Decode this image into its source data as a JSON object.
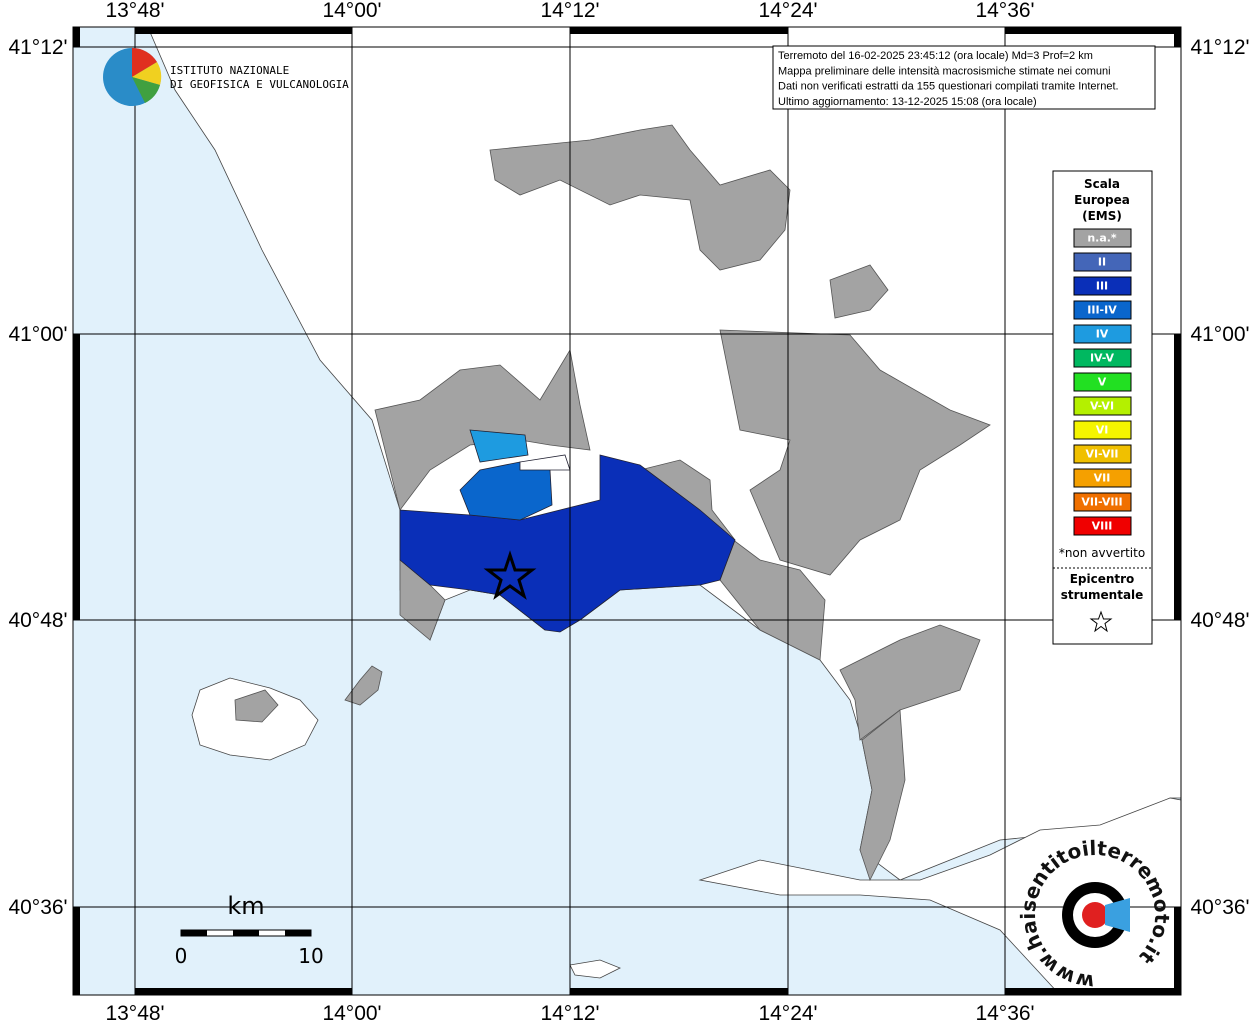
{
  "map": {
    "lon_labels": [
      "13°48'",
      "14°00'",
      "14°12'",
      "14°24'",
      "14°36'"
    ],
    "lat_labels": [
      "41°12'",
      "41°00'",
      "40°48'",
      "40°36'"
    ],
    "logo": [
      "ISTITUTO NAZIONALE",
      "DI GEOFISICA E VULCANOLOGIA"
    ],
    "info": [
      "Terremoto del 16-02-2025 23:45:12 (ora locale) Md=3 Prof=2 km",
      "Mappa preliminare delle intensità macrosismiche stimate nei comuni",
      "Dati non verificati estratti da 155 questionari compilati tramite Internet.",
      "Ultimo aggiornamento: 13-12-2025 15:08 (ora locale)"
    ],
    "legend": {
      "title": [
        "Scala",
        "Europea",
        "(EMS)"
      ],
      "items": [
        {
          "label": "n.a.*",
          "color": "#a3a3a3"
        },
        {
          "label": "II",
          "color": "#4466b8"
        },
        {
          "label": "III",
          "color": "#0a2fb8"
        },
        {
          "label": "III-IV",
          "color": "#0a66cc"
        },
        {
          "label": "IV",
          "color": "#1e9be0"
        },
        {
          "label": "IV-V",
          "color": "#00b860"
        },
        {
          "label": "V",
          "color": "#22e022"
        },
        {
          "label": "V-VI",
          "color": "#b4f000"
        },
        {
          "label": "VI",
          "color": "#f5f500"
        },
        {
          "label": "VI-VII",
          "color": "#f0c000"
        },
        {
          "label": "VII",
          "color": "#f5a000"
        },
        {
          "label": "VII-VIII",
          "color": "#f07000"
        },
        {
          "label": "VIII",
          "color": "#f00000"
        }
      ],
      "note": "*non avvertito",
      "epicenter": [
        "Epicentro",
        "strumentale"
      ]
    },
    "scale": {
      "unit": "km",
      "labels": [
        "0",
        "10"
      ]
    },
    "watermark": "www.haisentitoilterremoto.it"
  }
}
